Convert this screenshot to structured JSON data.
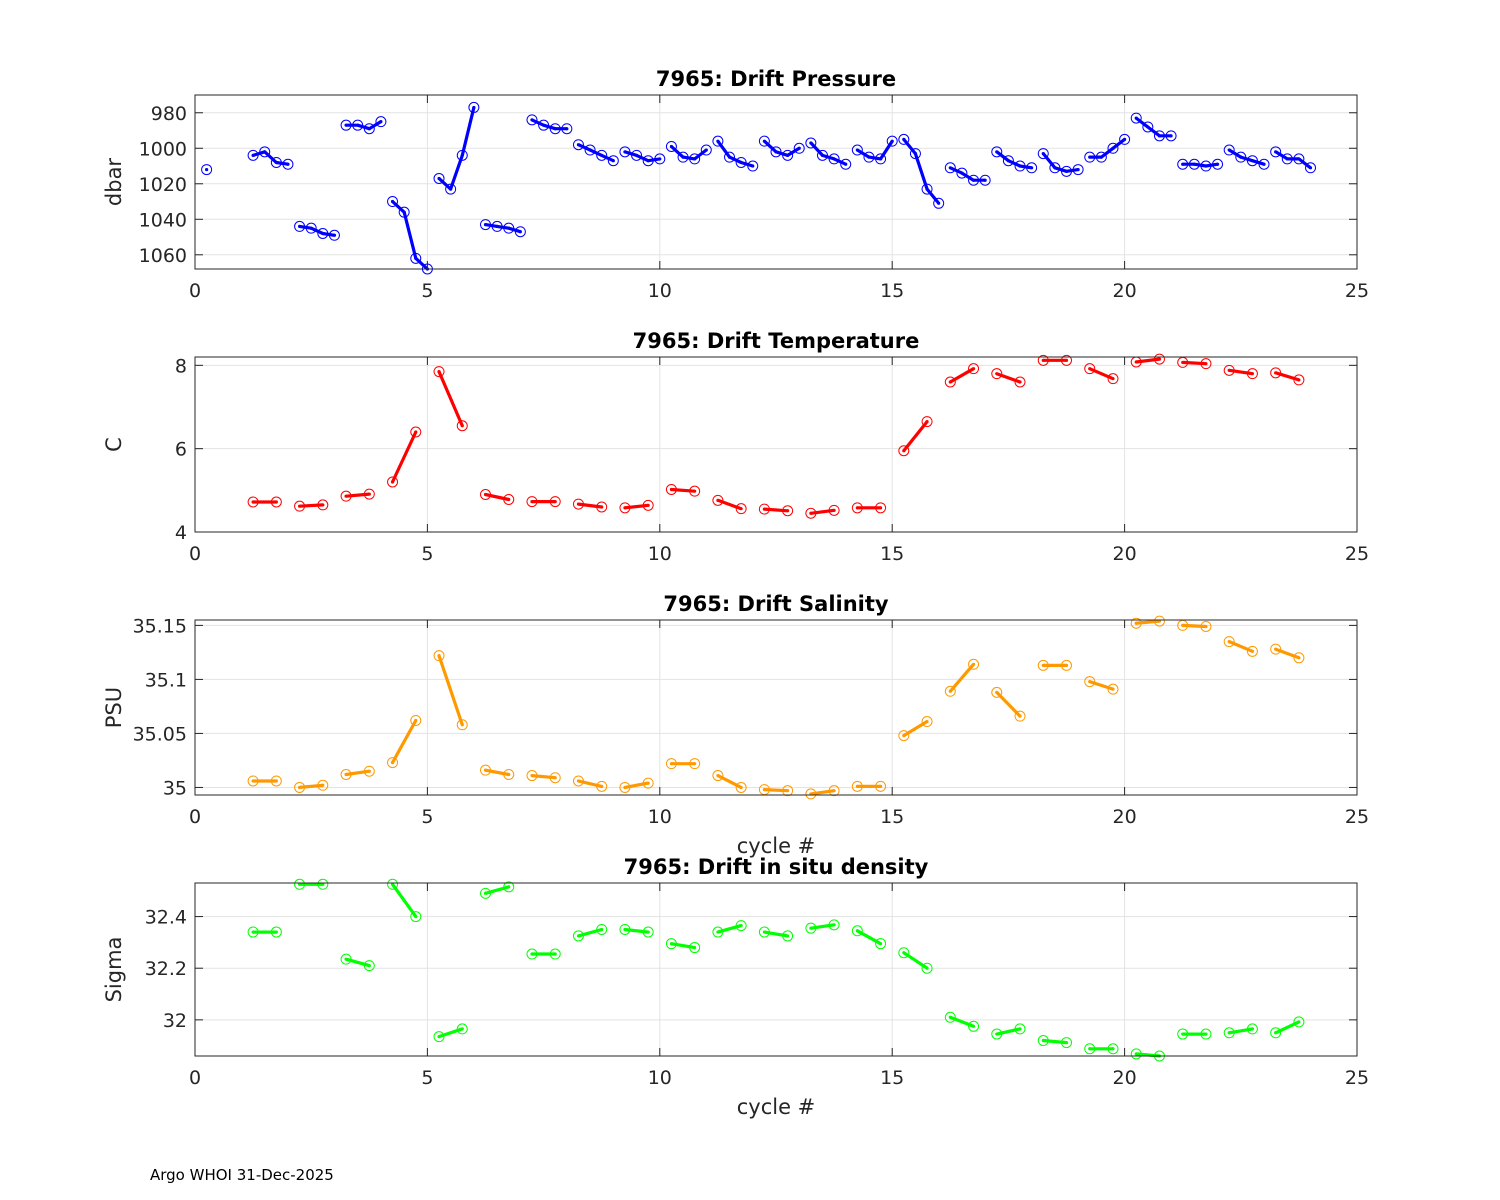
{
  "footer": {
    "text": "Argo WHOI 31-Dec-2025"
  },
  "chart_data": [
    {
      "type": "line",
      "title": "7965: Drift Pressure",
      "xlabel": "",
      "ylabel": "dbar",
      "xlim": [
        0,
        25
      ],
      "ylim": [
        970,
        1068
      ],
      "y_reversed": true,
      "xticks": [
        "0",
        "5",
        "10",
        "15",
        "20",
        "25"
      ],
      "yticks": [
        "980",
        "1000",
        "1020",
        "1040",
        "1060"
      ],
      "ytick_values": [
        980,
        1000,
        1020,
        1040,
        1060
      ],
      "grid": true,
      "color": "#0000ff",
      "segments": [
        [
          [
            0.25,
            1012
          ]
        ],
        [
          [
            1.25,
            1004
          ],
          [
            1.5,
            1002
          ],
          [
            1.75,
            1008
          ],
          [
            2.0,
            1009
          ]
        ],
        [
          [
            2.25,
            1044
          ],
          [
            2.5,
            1045
          ],
          [
            2.75,
            1048
          ],
          [
            3.0,
            1049
          ]
        ],
        [
          [
            3.25,
            987
          ],
          [
            3.5,
            987
          ],
          [
            3.75,
            989
          ],
          [
            4.0,
            985
          ]
        ],
        [
          [
            4.25,
            1030
          ],
          [
            4.5,
            1036
          ],
          [
            4.75,
            1062
          ],
          [
            5.0,
            1068
          ]
        ],
        [
          [
            5.25,
            1017
          ],
          [
            5.5,
            1023
          ],
          [
            5.75,
            1004
          ],
          [
            6.0,
            977
          ]
        ],
        [
          [
            6.25,
            1043
          ],
          [
            6.5,
            1044
          ],
          [
            6.75,
            1045
          ],
          [
            7.0,
            1047
          ]
        ],
        [
          [
            7.25,
            984
          ],
          [
            7.5,
            987
          ],
          [
            7.75,
            989
          ],
          [
            8.0,
            989
          ]
        ],
        [
          [
            8.25,
            998
          ],
          [
            8.5,
            1001
          ],
          [
            8.75,
            1004
          ],
          [
            9.0,
            1007
          ]
        ],
        [
          [
            9.25,
            1002
          ],
          [
            9.5,
            1004
          ],
          [
            9.75,
            1007
          ],
          [
            10.0,
            1006
          ]
        ],
        [
          [
            10.25,
            999
          ],
          [
            10.5,
            1005
          ],
          [
            10.75,
            1006
          ],
          [
            11.0,
            1001
          ]
        ],
        [
          [
            11.25,
            996
          ],
          [
            11.5,
            1005
          ],
          [
            11.75,
            1008
          ],
          [
            12.0,
            1010
          ]
        ],
        [
          [
            12.25,
            996
          ],
          [
            12.5,
            1002
          ],
          [
            12.75,
            1004
          ],
          [
            13.0,
            1000
          ]
        ],
        [
          [
            13.25,
            997
          ],
          [
            13.5,
            1004
          ],
          [
            13.75,
            1006
          ],
          [
            14.0,
            1009
          ]
        ],
        [
          [
            14.25,
            1001
          ],
          [
            14.5,
            1005
          ],
          [
            14.75,
            1006
          ],
          [
            15.0,
            996
          ]
        ],
        [
          [
            15.25,
            995
          ],
          [
            15.5,
            1003
          ],
          [
            15.75,
            1023
          ],
          [
            16.0,
            1031
          ]
        ],
        [
          [
            16.25,
            1011
          ],
          [
            16.5,
            1014
          ],
          [
            16.75,
            1018
          ],
          [
            17.0,
            1018
          ]
        ],
        [
          [
            17.25,
            1002
          ],
          [
            17.5,
            1007
          ],
          [
            17.75,
            1010
          ],
          [
            18.0,
            1011
          ]
        ],
        [
          [
            18.25,
            1003
          ],
          [
            18.5,
            1011
          ],
          [
            18.75,
            1013
          ],
          [
            19.0,
            1012
          ]
        ],
        [
          [
            19.25,
            1005
          ],
          [
            19.5,
            1005
          ],
          [
            19.75,
            1000
          ],
          [
            20.0,
            995
          ]
        ],
        [
          [
            20.25,
            983
          ],
          [
            20.5,
            988
          ],
          [
            20.75,
            993
          ],
          [
            21.0,
            993
          ]
        ],
        [
          [
            21.25,
            1009
          ],
          [
            21.5,
            1009
          ],
          [
            21.75,
            1010
          ],
          [
            22.0,
            1009
          ]
        ],
        [
          [
            22.25,
            1001
          ],
          [
            22.5,
            1005
          ],
          [
            22.75,
            1007
          ],
          [
            23.0,
            1009
          ]
        ],
        [
          [
            23.25,
            1002
          ],
          [
            23.5,
            1006
          ],
          [
            23.75,
            1006
          ],
          [
            24.0,
            1011
          ]
        ]
      ]
    },
    {
      "type": "line",
      "title": "7965: Drift Temperature",
      "xlabel": "",
      "ylabel": "C",
      "xlim": [
        0,
        25
      ],
      "ylim": [
        4,
        8.2
      ],
      "y_reversed": false,
      "xticks": [
        "0",
        "5",
        "10",
        "15",
        "20",
        "25"
      ],
      "yticks": [
        "4",
        "6",
        "8"
      ],
      "ytick_values": [
        4,
        6,
        8
      ],
      "grid": true,
      "color": "#ff0000",
      "segments": [
        [
          [
            1.25,
            4.72
          ],
          [
            1.75,
            4.72
          ]
        ],
        [
          [
            2.25,
            4.62
          ],
          [
            2.75,
            4.65
          ]
        ],
        [
          [
            3.25,
            4.86
          ],
          [
            3.75,
            4.91
          ]
        ],
        [
          [
            4.25,
            5.2
          ],
          [
            4.75,
            6.4
          ]
        ],
        [
          [
            5.25,
            7.85
          ],
          [
            5.75,
            6.55
          ]
        ],
        [
          [
            6.25,
            4.9
          ],
          [
            6.75,
            4.78
          ]
        ],
        [
          [
            7.25,
            4.73
          ],
          [
            7.75,
            4.73
          ]
        ],
        [
          [
            8.25,
            4.67
          ],
          [
            8.75,
            4.6
          ]
        ],
        [
          [
            9.25,
            4.58
          ],
          [
            9.75,
            4.64
          ]
        ],
        [
          [
            10.25,
            5.02
          ],
          [
            10.75,
            4.98
          ]
        ],
        [
          [
            11.25,
            4.76
          ],
          [
            11.75,
            4.56
          ]
        ],
        [
          [
            12.25,
            4.55
          ],
          [
            12.75,
            4.51
          ]
        ],
        [
          [
            13.25,
            4.45
          ],
          [
            13.75,
            4.52
          ]
        ],
        [
          [
            14.25,
            4.58
          ],
          [
            14.75,
            4.58
          ]
        ],
        [
          [
            15.25,
            5.95
          ],
          [
            15.75,
            6.65
          ]
        ],
        [
          [
            16.25,
            7.6
          ],
          [
            16.75,
            7.92
          ]
        ],
        [
          [
            17.25,
            7.8
          ],
          [
            17.75,
            7.6
          ]
        ],
        [
          [
            18.25,
            8.12
          ],
          [
            18.75,
            8.12
          ]
        ],
        [
          [
            19.25,
            7.92
          ],
          [
            19.75,
            7.68
          ]
        ],
        [
          [
            20.25,
            8.08
          ],
          [
            20.75,
            8.15
          ]
        ],
        [
          [
            21.25,
            8.07
          ],
          [
            21.75,
            8.04
          ]
        ],
        [
          [
            22.25,
            7.88
          ],
          [
            22.75,
            7.8
          ]
        ],
        [
          [
            23.25,
            7.82
          ],
          [
            23.75,
            7.65
          ]
        ]
      ]
    },
    {
      "type": "line",
      "title": "7965: Drift Salinity",
      "xlabel": "cycle #",
      "ylabel": "PSU",
      "xlim": [
        0,
        25
      ],
      "ylim": [
        34.993,
        35.155
      ],
      "y_reversed": false,
      "xticks": [
        "0",
        "5",
        "10",
        "15",
        "20",
        "25"
      ],
      "yticks": [
        "35",
        "35.05",
        "35.1",
        "35.15"
      ],
      "ytick_values": [
        35,
        35.05,
        35.1,
        35.15
      ],
      "grid": true,
      "color": "#ff9900",
      "segments": [
        [
          [
            1.25,
            35.006
          ],
          [
            1.75,
            35.006
          ]
        ],
        [
          [
            2.25,
            35.0
          ],
          [
            2.75,
            35.002
          ]
        ],
        [
          [
            3.25,
            35.012
          ],
          [
            3.75,
            35.015
          ]
        ],
        [
          [
            4.25,
            35.023
          ],
          [
            4.75,
            35.062
          ]
        ],
        [
          [
            5.25,
            35.122
          ],
          [
            5.75,
            35.058
          ]
        ],
        [
          [
            6.25,
            35.016
          ],
          [
            6.75,
            35.012
          ]
        ],
        [
          [
            7.25,
            35.011
          ],
          [
            7.75,
            35.009
          ]
        ],
        [
          [
            8.25,
            35.006
          ],
          [
            8.75,
            35.001
          ]
        ],
        [
          [
            9.25,
            35.0
          ],
          [
            9.75,
            35.004
          ]
        ],
        [
          [
            10.25,
            35.022
          ],
          [
            10.75,
            35.022
          ]
        ],
        [
          [
            11.25,
            35.011
          ],
          [
            11.75,
            35.0
          ]
        ],
        [
          [
            12.25,
            34.998
          ],
          [
            12.75,
            34.997
          ]
        ],
        [
          [
            13.25,
            34.994
          ],
          [
            13.75,
            34.997
          ]
        ],
        [
          [
            14.25,
            35.001
          ],
          [
            14.75,
            35.001
          ]
        ],
        [
          [
            15.25,
            35.048
          ],
          [
            15.75,
            35.061
          ]
        ],
        [
          [
            16.25,
            35.089
          ],
          [
            16.75,
            35.114
          ]
        ],
        [
          [
            17.25,
            35.088
          ],
          [
            17.75,
            35.066
          ]
        ],
        [
          [
            18.25,
            35.113
          ],
          [
            18.75,
            35.113
          ]
        ],
        [
          [
            19.25,
            35.098
          ],
          [
            19.75,
            35.091
          ]
        ],
        [
          [
            20.25,
            35.152
          ],
          [
            20.75,
            35.154
          ]
        ],
        [
          [
            21.25,
            35.15
          ],
          [
            21.75,
            35.149
          ]
        ],
        [
          [
            22.25,
            35.135
          ],
          [
            22.75,
            35.126
          ]
        ],
        [
          [
            23.25,
            35.128
          ],
          [
            23.75,
            35.12
          ]
        ]
      ]
    },
    {
      "type": "line",
      "title": "7965: Drift in situ density",
      "xlabel": "cycle #",
      "ylabel": "Sigma",
      "xlim": [
        0,
        25
      ],
      "ylim": [
        31.86,
        32.53
      ],
      "y_reversed": false,
      "xticks": [
        "0",
        "5",
        "10",
        "15",
        "20",
        "25"
      ],
      "yticks": [
        "32",
        "32.2",
        "32.4"
      ],
      "ytick_values": [
        32,
        32.2,
        32.4
      ],
      "grid": true,
      "color": "#00ff00",
      "segments": [
        [
          [
            1.25,
            32.34
          ],
          [
            1.75,
            32.34
          ]
        ],
        [
          [
            2.25,
            32.525
          ],
          [
            2.75,
            32.525
          ]
        ],
        [
          [
            3.25,
            32.235
          ],
          [
            3.75,
            32.21
          ]
        ],
        [
          [
            4.25,
            32.525
          ],
          [
            4.75,
            32.4
          ]
        ],
        [
          [
            5.25,
            31.935
          ],
          [
            5.75,
            31.965
          ]
        ],
        [
          [
            6.25,
            32.49
          ],
          [
            6.75,
            32.515
          ]
        ],
        [
          [
            7.25,
            32.255
          ],
          [
            7.75,
            32.255
          ]
        ],
        [
          [
            8.25,
            32.325
          ],
          [
            8.75,
            32.35
          ]
        ],
        [
          [
            9.25,
            32.35
          ],
          [
            9.75,
            32.34
          ]
        ],
        [
          [
            10.25,
            32.295
          ],
          [
            10.75,
            32.28
          ]
        ],
        [
          [
            11.25,
            32.34
          ],
          [
            11.75,
            32.365
          ]
        ],
        [
          [
            12.25,
            32.34
          ],
          [
            12.75,
            32.325
          ]
        ],
        [
          [
            13.25,
            32.355
          ],
          [
            13.75,
            32.368
          ]
        ],
        [
          [
            14.25,
            32.345
          ],
          [
            14.75,
            32.295
          ]
        ],
        [
          [
            15.25,
            32.26
          ],
          [
            15.75,
            32.2
          ]
        ],
        [
          [
            16.25,
            32.01
          ],
          [
            16.75,
            31.975
          ]
        ],
        [
          [
            17.25,
            31.945
          ],
          [
            17.75,
            31.965
          ]
        ],
        [
          [
            18.25,
            31.92
          ],
          [
            18.75,
            31.912
          ]
        ],
        [
          [
            19.25,
            31.888
          ],
          [
            19.75,
            31.888
          ]
        ],
        [
          [
            20.25,
            31.868
          ],
          [
            20.75,
            31.86
          ]
        ],
        [
          [
            21.25,
            31.945
          ],
          [
            21.75,
            31.945
          ]
        ],
        [
          [
            22.25,
            31.95
          ],
          [
            22.75,
            31.965
          ]
        ],
        [
          [
            23.25,
            31.95
          ],
          [
            23.75,
            31.992
          ]
        ]
      ]
    }
  ]
}
